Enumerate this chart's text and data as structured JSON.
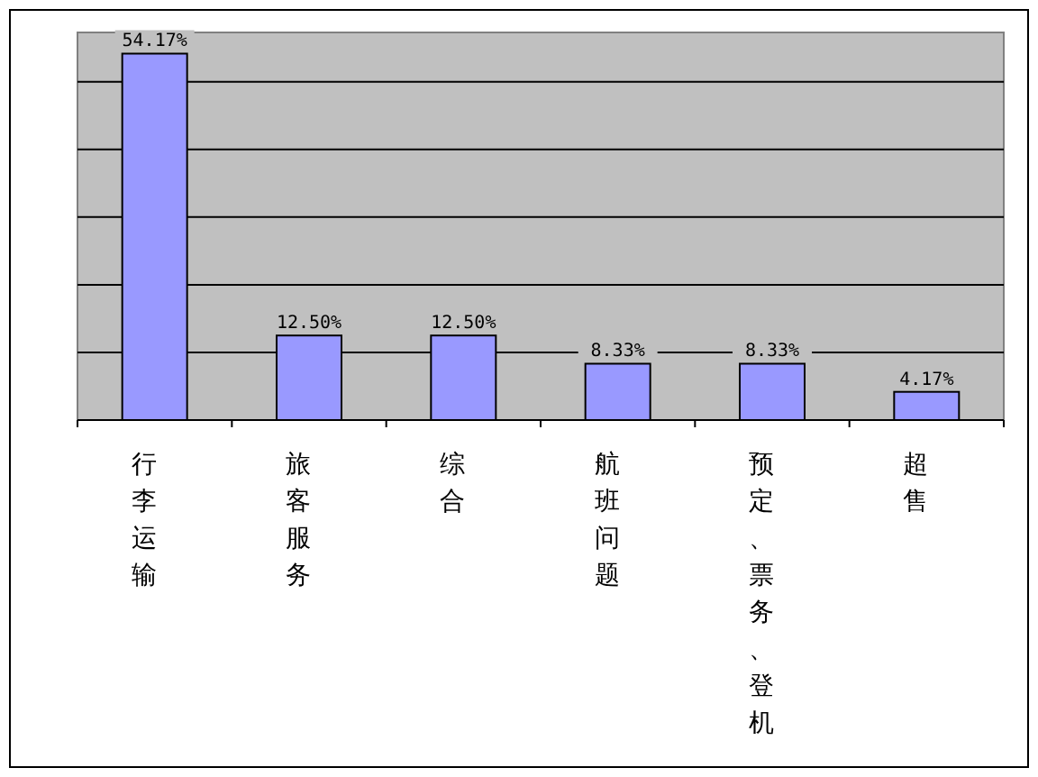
{
  "chart_data": {
    "type": "bar",
    "categories": [
      "行李运输",
      "旅客服务",
      "综合",
      "航班问题",
      "预定、票务、登机",
      "超售"
    ],
    "values": [
      54.17,
      12.5,
      12.5,
      8.33,
      8.33,
      4.17
    ],
    "value_labels": [
      "54.17%",
      "12.50%",
      "12.50%",
      "8.33%",
      "8.33%",
      "4.17%"
    ],
    "color": "#9999ff",
    "ylim": [
      0,
      57.3
    ],
    "yticks": [
      {
        "value": 10,
        "label": null
      },
      {
        "value": 20,
        "label": null
      },
      {
        "value": 30,
        "label": null
      },
      {
        "value": 40,
        "label": null
      },
      {
        "value": 50,
        "label": null
      }
    ],
    "grid": "y"
  }
}
